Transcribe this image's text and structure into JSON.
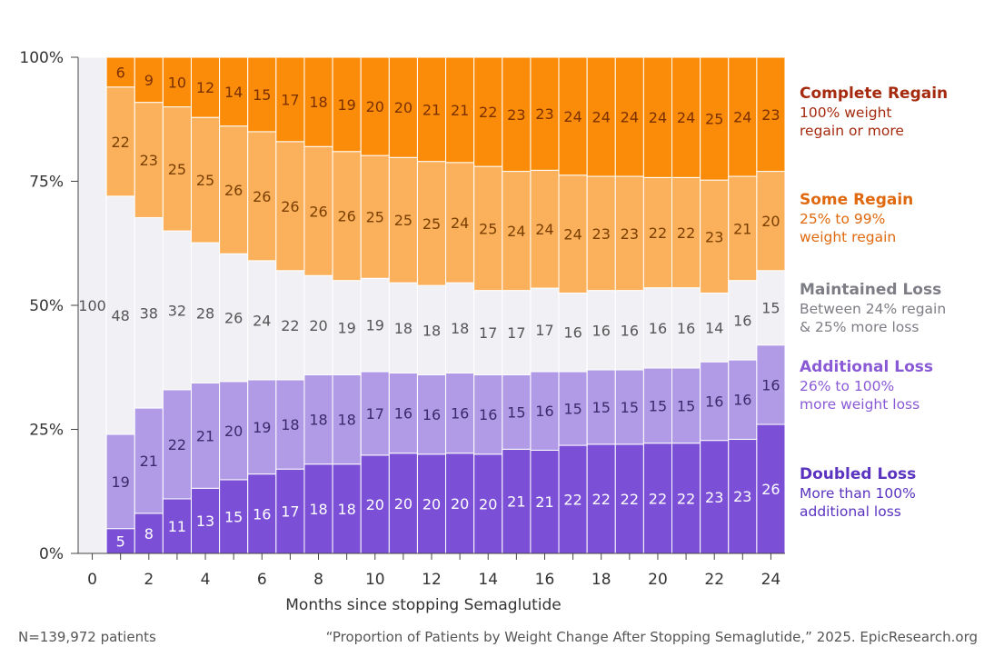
{
  "chart_data": {
    "type": "bar",
    "stacked": true,
    "x": [
      0,
      1,
      2,
      3,
      4,
      5,
      6,
      7,
      8,
      9,
      10,
      11,
      12,
      13,
      14,
      15,
      16,
      17,
      18,
      19,
      20,
      21,
      22,
      23,
      24
    ],
    "xlabel": "Months since stopping Semaglutide",
    "ylabel": "",
    "ylim": [
      0,
      100
    ],
    "y_ticks": [
      "0%",
      "25%",
      "50%",
      "75%",
      "100%"
    ],
    "x_ticks": [
      "0",
      "2",
      "4",
      "6",
      "8",
      "10",
      "12",
      "14",
      "16",
      "18",
      "20",
      "22",
      "24"
    ],
    "series": [
      {
        "name": "Doubled Loss",
        "color": "#7b4fd6",
        "label_color": "#ffffff",
        "values": [
          0,
          5,
          8,
          11,
          13,
          15,
          16,
          17,
          18,
          18,
          20,
          20,
          20,
          20,
          20,
          21,
          21,
          22,
          22,
          22,
          22,
          22,
          23,
          23,
          26
        ]
      },
      {
        "name": "Additional Loss",
        "color": "#b19be6",
        "label_color": "#3b2a6b",
        "values": [
          0,
          19,
          21,
          22,
          21,
          20,
          19,
          18,
          18,
          18,
          17,
          16,
          16,
          16,
          16,
          15,
          16,
          15,
          15,
          15,
          15,
          15,
          16,
          16,
          16
        ]
      },
      {
        "name": "Maintained Loss",
        "color": "#f1f0f5",
        "label_color": "#555555",
        "values": [
          100,
          48,
          38,
          32,
          28,
          26,
          24,
          22,
          20,
          19,
          19,
          18,
          18,
          18,
          17,
          17,
          17,
          16,
          16,
          16,
          16,
          16,
          14,
          16,
          15
        ]
      },
      {
        "name": "Some Regain",
        "color": "#fbb05c",
        "label_color": "#7a3f00",
        "values": [
          0,
          22,
          23,
          25,
          25,
          26,
          26,
          26,
          26,
          26,
          25,
          25,
          25,
          24,
          25,
          24,
          24,
          24,
          23,
          23,
          22,
          22,
          23,
          21,
          20
        ]
      },
      {
        "name": "Complete Regain",
        "color": "#fb8c0a",
        "label_color": "#7a3000",
        "values": [
          0,
          6,
          9,
          10,
          12,
          14,
          15,
          17,
          18,
          19,
          20,
          20,
          21,
          21,
          22,
          23,
          23,
          24,
          24,
          24,
          24,
          24,
          25,
          24,
          23
        ]
      }
    ]
  },
  "legend": [
    {
      "title": "Complete Regain",
      "desc": [
        "100% weight",
        "regain or more"
      ],
      "color": "#a52a0e",
      "desc_color": "#a52a0e"
    },
    {
      "title": "Some Regain",
      "desc": [
        "25% to 99%",
        "weight regain"
      ],
      "color": "#e0690f",
      "desc_color": "#e0690f"
    },
    {
      "title": "Maintained Loss",
      "desc": [
        "Between 24% regain",
        "& 25% more loss"
      ],
      "color": "#7d7d85",
      "desc_color": "#7d7d85"
    },
    {
      "title": "Additional Loss",
      "desc": [
        "26% to 100%",
        "more weight loss"
      ],
      "color": "#8a5ad6",
      "desc_color": "#8a5ad6"
    },
    {
      "title": "Doubled Loss",
      "desc": [
        "More than 100%",
        "additional loss"
      ],
      "color": "#5a34c0",
      "desc_color": "#5a34c0"
    }
  ],
  "footer": {
    "left": "N=139,972 patients",
    "right": "“Proportion of Patients by Weight Change After Stopping Semaglutide,” 2025. EpicResearch.org"
  }
}
